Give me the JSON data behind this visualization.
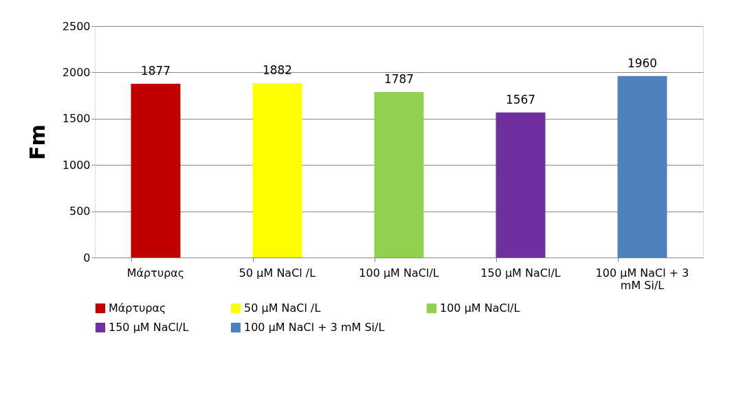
{
  "chart_data": {
    "type": "bar",
    "ylabel": "Fm",
    "categories": [
      "Μάρτυρας",
      "50 μM NaCl /L",
      "100 μM NaCl/L",
      "150 μM NaCl/L",
      "100 μM NaCl + 3 mM Si/L"
    ],
    "series": [
      {
        "name": "Μάρτυρας",
        "color": "#c00000",
        "values": [
          1877,
          null,
          null,
          null,
          null
        ]
      },
      {
        "name": "50 μM NaCl /L",
        "color": "#ffff00",
        "values": [
          null,
          1882,
          null,
          null,
          null
        ]
      },
      {
        "name": "100 μM NaCl/L",
        "color": "#92d050",
        "values": [
          null,
          null,
          1787,
          null,
          null
        ]
      },
      {
        "name": "150 μM NaCl/L",
        "color": "#7030a0",
        "values": [
          null,
          null,
          null,
          1567,
          null
        ]
      },
      {
        "name": "100 μM NaCl + 3 mM Si/L",
        "color": "#4f81bd",
        "values": [
          null,
          null,
          null,
          null,
          1960
        ]
      }
    ],
    "ylim": [
      0,
      2500
    ],
    "yticks": [
      0,
      500,
      1000,
      1500,
      2000,
      2500
    ],
    "grid": "y",
    "legend": "bottom",
    "data_labels": true
  }
}
